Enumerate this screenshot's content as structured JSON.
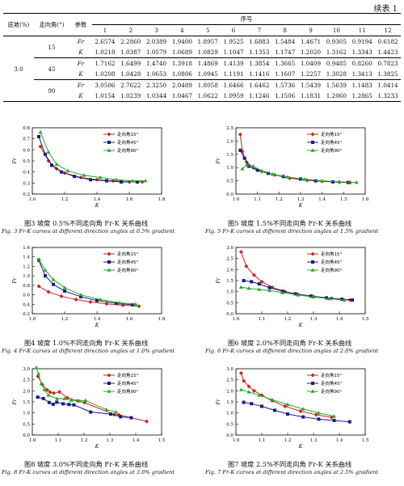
{
  "header_label": "续表 1",
  "table": {
    "head": {
      "slope": "底坡(%)",
      "angle": "走向角(°)",
      "param": "参数",
      "seq": "序号"
    },
    "seq_numbers": [
      "1",
      "2",
      "3",
      "4",
      "5",
      "6",
      "7",
      "8",
      "9",
      "10",
      "11",
      "12"
    ],
    "slope_value": "3.0",
    "groups": [
      {
        "angle": "15",
        "rows": [
          {
            "param": "Fr",
            "values": [
              "2.6574",
              "2.2860",
              "2.0389",
              "1.9400",
              "1.8957",
              "1.9525",
              "1.6883",
              "1.5484",
              "1.4671",
              "0.9305",
              "0.9194",
              "0.6182"
            ]
          },
          {
            "param": "K",
            "values": [
              "1.0218",
              "1.0387",
              "1.0579",
              "1.0689",
              "1.0829",
              "1.1047",
              "1.1353",
              "1.1747",
              "1.2020",
              "1.3162",
              "1.3343",
              "1.4423"
            ]
          }
        ]
      },
      {
        "angle": "45",
        "rows": [
          {
            "param": "Fr",
            "values": [
              "1.7162",
              "1.6499",
              "1.4740",
              "1.3918",
              "1.4869",
              "1.4139",
              "1.3854",
              "1.3665",
              "1.0409",
              "0.9485",
              "0.8260",
              "0.7823"
            ]
          },
          {
            "param": "K",
            "values": [
              "1.0208",
              "1.0428",
              "1.0653",
              "1.0806",
              "1.0945",
              "1.1191",
              "1.1416",
              "1.1607",
              "1.2257",
              "1.3028",
              "1.3413",
              "1.3825"
            ]
          }
        ]
      },
      {
        "angle": "90",
        "rows": [
          {
            "param": "Fr",
            "values": [
              "3.0506",
              "2.7622",
              "2.3250",
              "2.0489",
              "1.8058",
              "1.6466",
              "1.6462",
              "1.5736",
              "1.5439",
              "1.5639",
              "1.1483",
              "1.0414"
            ]
          },
          {
            "param": "K",
            "values": [
              "1.0154",
              "1.0239",
              "1.0344",
              "1.0467",
              "1.0622",
              "1.0959",
              "1.1246",
              "1.1506",
              "1.1831",
              "1.2060",
              "1.2865",
              "1.3233"
            ]
          }
        ]
      }
    ]
  },
  "legend_labels": [
    "走向角15°",
    "走向角45°",
    "走向角90°"
  ],
  "series_colors": [
    "#cc2222",
    "#1a1a8a",
    "#22aa22"
  ],
  "figures": [
    {
      "caption": "图3  坡度 0.5%不同走向角 Fr-K 关系曲线",
      "caption_en": "Fig. 3   Fr-K curves at different direction angles at 0.5% gradient"
    },
    {
      "caption": "图5  坡度 1.5%不同走向角 Fr-K 关系曲线",
      "caption_en": "Fig. 5   Fr-K curves at different direction angles at 1.5% gradient"
    },
    {
      "caption": "图4  坡度 1.0%不同走向角 Fr-K 关系曲线",
      "caption_en": "Fig. 4   Fr-K curves at different direction angles at 1.0% gradient"
    },
    {
      "caption": "图6  坡度 2.0%不同走向角 Fr-K 关系曲线",
      "caption_en": "Fig. 6   Fr-K curves at different direction angles at 2.0% gradient"
    },
    {
      "caption": "图8  坡度 3.0%不同走向角 Fr-K 关系曲线",
      "caption_en": "Fig. 8   Fr-K curves at different direction angles at 3.0% gradient"
    },
    {
      "caption": "图7  坡度 2.5%不同走向角 Fr-K 关系曲线",
      "caption_en": "Fig. 7   Fr-K curves at different direction angles at 2.5% gradient"
    }
  ],
  "chart_data": [
    {
      "type": "line",
      "xlabel": "K",
      "ylabel": "Fr",
      "xlim": [
        1.0,
        1.8
      ],
      "ylim": [
        0.2,
        0.8
      ],
      "xticks": [
        "1.0",
        "1.2",
        "1.4",
        "1.6",
        "1.8"
      ],
      "yticks": [
        "0.2",
        "0.3",
        "0.4",
        "0.5",
        "0.6",
        "0.7",
        "0.8"
      ],
      "series": [
        {
          "name": "走向角15°",
          "x": [
            1.05,
            1.1,
            1.15,
            1.2,
            1.3,
            1.4,
            1.5,
            1.6,
            1.68
          ],
          "y": [
            0.63,
            0.5,
            0.43,
            0.39,
            0.35,
            0.33,
            0.32,
            0.31,
            0.31
          ]
        },
        {
          "name": "走向角45°",
          "x": [
            1.04,
            1.08,
            1.12,
            1.18,
            1.26,
            1.36,
            1.46,
            1.55,
            1.65
          ],
          "y": [
            0.72,
            0.56,
            0.46,
            0.4,
            0.36,
            0.33,
            0.32,
            0.31,
            0.31
          ]
        },
        {
          "name": "走向角90°",
          "x": [
            1.05,
            1.1,
            1.15,
            1.22,
            1.32,
            1.42,
            1.52,
            1.62,
            1.7
          ],
          "y": [
            0.76,
            0.58,
            0.47,
            0.41,
            0.37,
            0.35,
            0.33,
            0.32,
            0.32
          ]
        }
      ]
    },
    {
      "type": "line",
      "xlabel": "K",
      "ylabel": "Fr",
      "xlim": [
        1.0,
        1.6
      ],
      "ylim": [
        0.0,
        2.5
      ],
      "xticks": [
        "1.0",
        "1.1",
        "1.2",
        "1.3",
        "1.4",
        "1.5",
        "1.6"
      ],
      "yticks": [
        "0.0",
        "0.5",
        "1.0",
        "1.5",
        "2.0",
        "2.5"
      ],
      "series": [
        {
          "name": "走向角15°",
          "x": [
            1.02,
            1.03,
            1.05,
            1.08,
            1.12,
            1.18,
            1.25,
            1.33,
            1.4,
            1.48,
            1.53
          ],
          "y": [
            2.25,
            1.6,
            1.2,
            1.0,
            0.85,
            0.72,
            0.6,
            0.52,
            0.48,
            0.45,
            0.43
          ]
        },
        {
          "name": "走向角45°",
          "x": [
            1.02,
            1.04,
            1.06,
            1.1,
            1.15,
            1.22,
            1.3,
            1.37,
            1.45,
            1.52
          ],
          "y": [
            1.65,
            1.35,
            1.05,
            0.9,
            0.78,
            0.66,
            0.57,
            0.5,
            0.46,
            0.44
          ]
        },
        {
          "name": "走向角90°",
          "x": [
            1.03,
            1.05,
            1.08,
            1.12,
            1.17,
            1.24,
            1.32,
            1.4,
            1.48,
            1.56
          ],
          "y": [
            0.95,
            1.1,
            1.05,
            0.88,
            0.75,
            0.64,
            0.56,
            0.5,
            0.46,
            0.44
          ]
        }
      ]
    },
    {
      "type": "line",
      "xlabel": "K",
      "ylabel": "Fr",
      "xlim": [
        1.0,
        1.8
      ],
      "ylim": [
        0.2,
        1.6
      ],
      "xticks": [
        "1.0",
        "1.2",
        "1.4",
        "1.6",
        "1.8"
      ],
      "yticks": [
        "0.2",
        "0.4",
        "0.6",
        "0.8",
        "1.0",
        "1.2",
        "1.4",
        "1.6"
      ],
      "series": [
        {
          "name": "走向角15°",
          "x": [
            1.04,
            1.1,
            1.18,
            1.27,
            1.36,
            1.46,
            1.56,
            1.66
          ],
          "y": [
            0.78,
            0.66,
            0.57,
            0.5,
            0.45,
            0.41,
            0.38,
            0.36
          ]
        },
        {
          "name": "走向角45°",
          "x": [
            1.04,
            1.08,
            1.13,
            1.2,
            1.3,
            1.4,
            1.52,
            1.62
          ],
          "y": [
            1.33,
            1.0,
            0.82,
            0.68,
            0.56,
            0.48,
            0.42,
            0.39
          ]
        },
        {
          "name": "走向角90°",
          "x": [
            1.04,
            1.08,
            1.13,
            1.2,
            1.3,
            1.42,
            1.54,
            1.64
          ],
          "y": [
            1.35,
            1.12,
            0.92,
            0.75,
            0.6,
            0.5,
            0.43,
            0.4
          ]
        }
      ]
    },
    {
      "type": "line",
      "xlabel": "K",
      "ylabel": "Fr",
      "xlim": [
        1.0,
        1.5
      ],
      "ylim": [
        0.0,
        3.0
      ],
      "xticks": [
        "1.0",
        "1.1",
        "1.2",
        "1.3",
        "1.4",
        "1.5"
      ],
      "yticks": [
        "0.0",
        "0.5",
        "1.0",
        "1.5",
        "2.0",
        "2.5",
        "3.0"
      ],
      "series": [
        {
          "name": "走向角15°",
          "x": [
            1.02,
            1.04,
            1.07,
            1.1,
            1.14,
            1.19,
            1.24,
            1.3,
            1.37,
            1.44
          ],
          "y": [
            2.8,
            2.15,
            1.75,
            1.45,
            1.2,
            1.0,
            0.88,
            0.78,
            0.7,
            0.62
          ]
        },
        {
          "name": "走向角45°",
          "x": [
            1.03,
            1.06,
            1.09,
            1.13,
            1.18,
            1.23,
            1.29,
            1.35,
            1.41,
            1.45
          ],
          "y": [
            1.5,
            1.45,
            1.35,
            1.18,
            1.02,
            0.9,
            0.8,
            0.72,
            0.66,
            0.62
          ]
        },
        {
          "name": "走向角90°",
          "x": [
            1.02,
            1.05,
            1.09,
            1.13,
            1.18,
            1.24,
            1.3,
            1.36,
            1.42
          ],
          "y": [
            1.2,
            1.15,
            1.1,
            1.05,
            0.95,
            0.85,
            0.76,
            0.68,
            0.62
          ]
        }
      ]
    },
    {
      "type": "line",
      "xlabel": "K",
      "ylabel": "Fr",
      "xlim": [
        1.0,
        1.5
      ],
      "ylim": [
        0.0,
        3.0
      ],
      "xticks": [
        "1.0",
        "1.1",
        "1.2",
        "1.3",
        "1.4",
        "1.5"
      ],
      "yticks": [
        "0.0",
        "0.5",
        "1.0",
        "1.5",
        "2.0",
        "2.5",
        "3.0"
      ],
      "series": [
        {
          "name": "走向角15°",
          "x": [
            1.0218,
            1.0387,
            1.0579,
            1.0689,
            1.0829,
            1.1047,
            1.1353,
            1.1747,
            1.202,
            1.3162,
            1.3343,
            1.4423
          ],
          "y": [
            2.6574,
            2.286,
            2.0389,
            1.94,
            1.8957,
            1.9525,
            1.6883,
            1.5484,
            1.4671,
            0.9305,
            0.9194,
            0.6182
          ]
        },
        {
          "name": "走向角45°",
          "x": [
            1.0208,
            1.0428,
            1.0653,
            1.0806,
            1.0945,
            1.1191,
            1.1416,
            1.1607,
            1.2257,
            1.3028,
            1.3413,
            1.3825
          ],
          "y": [
            1.7162,
            1.6499,
            1.474,
            1.3918,
            1.4869,
            1.4139,
            1.3854,
            1.3665,
            1.0409,
            0.9485,
            0.826,
            0.7823
          ]
        },
        {
          "name": "走向角90°",
          "x": [
            1.0154,
            1.0239,
            1.0344,
            1.0467,
            1.0622,
            1.0959,
            1.1246,
            1.1506,
            1.1831,
            1.206,
            1.2865,
            1.3233
          ],
          "y": [
            3.0506,
            2.7622,
            2.325,
            2.0489,
            1.8058,
            1.6466,
            1.6462,
            1.5736,
            1.5439,
            1.5639,
            1.1483,
            1.0414
          ]
        }
      ]
    },
    {
      "type": "line",
      "xlabel": "K",
      "ylabel": "Fr",
      "xlim": [
        1.0,
        1.5
      ],
      "ylim": [
        0.0,
        3.0
      ],
      "xticks": [
        "1.0",
        "1.1",
        "1.2",
        "1.3",
        "1.4",
        "1.5"
      ],
      "yticks": [
        "0.0",
        "0.5",
        "1.0",
        "1.5",
        "2.0",
        "2.5",
        "3.0"
      ],
      "series": [
        {
          "name": "走向角15°",
          "x": [
            1.02,
            1.03,
            1.05,
            1.07,
            1.1,
            1.14,
            1.19,
            1.25,
            1.31,
            1.37
          ],
          "y": [
            2.8,
            2.45,
            2.2,
            2.0,
            1.8,
            1.55,
            1.3,
            1.08,
            0.92,
            0.8
          ]
        },
        {
          "name": "走向角45°",
          "x": [
            1.03,
            1.06,
            1.1,
            1.15,
            1.2,
            1.26,
            1.32,
            1.38,
            1.44
          ],
          "y": [
            1.48,
            1.42,
            1.3,
            1.12,
            0.95,
            0.82,
            0.72,
            0.66,
            0.6
          ]
        },
        {
          "name": "走向角90°",
          "x": [
            1.02,
            1.05,
            1.09,
            1.14,
            1.2,
            1.26,
            1.32,
            1.38
          ],
          "y": [
            2.05,
            1.95,
            1.8,
            1.6,
            1.38,
            1.18,
            1.0,
            0.85
          ]
        }
      ]
    }
  ]
}
